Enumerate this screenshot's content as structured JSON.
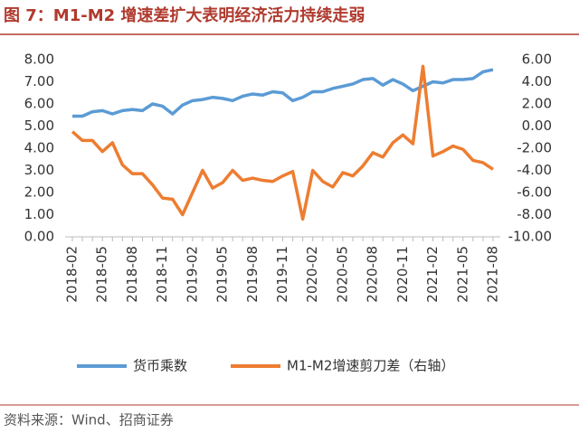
{
  "chart_data": {
    "type": "line",
    "title": "图 7：M1-M2 增速差扩大表明经济活力持续走弱",
    "source": "资料来源：Wind、招商证券",
    "categories": [
      "2018-02",
      null,
      null,
      "2018-05",
      null,
      null,
      "2018-08",
      null,
      null,
      "2018-11",
      null,
      null,
      "2019-02",
      null,
      null,
      "2019-05",
      null,
      null,
      "2019-08",
      null,
      null,
      "2019-11",
      null,
      null,
      "2020-02",
      null,
      null,
      "2020-05",
      null,
      null,
      "2020-08",
      null,
      null,
      "2020-11",
      null,
      null,
      "2021-02",
      null,
      null,
      "2021-05",
      null,
      null,
      "2021-08"
    ],
    "series": [
      {
        "name": "货币乘数",
        "color": "#5b9bd5",
        "values": [
          5.45,
          5.45,
          5.65,
          5.7,
          5.55,
          5.7,
          5.75,
          5.7,
          6.0,
          5.9,
          5.55,
          5.95,
          6.15,
          6.2,
          6.3,
          6.25,
          6.15,
          6.35,
          6.45,
          6.4,
          6.55,
          6.5,
          6.15,
          6.3,
          6.55,
          6.55,
          6.7,
          6.8,
          6.9,
          7.1,
          7.15,
          6.85,
          7.1,
          6.9,
          6.6,
          6.8,
          7.0,
          6.95,
          7.1,
          7.1,
          7.15,
          7.45,
          7.55
        ]
      },
      {
        "name": "M1-M2增速剪刀差（右轴）",
        "color": "#ed7d31",
        "axis": "y2",
        "values": [
          -0.5,
          -1.3,
          -1.3,
          -2.3,
          -1.5,
          -3.5,
          -4.3,
          -4.3,
          -5.3,
          -6.5,
          -6.6,
          -8.0,
          -6.0,
          -4.0,
          -5.6,
          -5.1,
          -4.0,
          -4.9,
          -4.7,
          -4.9,
          -5.0,
          -4.5,
          -4.1,
          -8.4,
          -4.0,
          -5.0,
          -5.5,
          -4.2,
          -4.5,
          -3.6,
          -2.4,
          -2.8,
          -1.5,
          -0.8,
          -1.6,
          5.4,
          -2.7,
          -2.3,
          -1.8,
          -2.1,
          -3.1,
          -3.3,
          -3.9
        ]
      }
    ],
    "ylim": [
      0,
      8
    ],
    "yticks": [
      {
        "value": 0,
        "label": "0.00"
      },
      {
        "value": 1,
        "label": "1.00"
      },
      {
        "value": 2,
        "label": "2.00"
      },
      {
        "value": 3,
        "label": "3.00"
      },
      {
        "value": 4,
        "label": "4.00"
      },
      {
        "value": 5,
        "label": "5.00"
      },
      {
        "value": 6,
        "label": "6.00"
      },
      {
        "value": 7,
        "label": "7.00"
      },
      {
        "value": 8,
        "label": "8.00"
      }
    ],
    "y2lim": [
      -10,
      6
    ],
    "y2ticks": [
      {
        "value": -10,
        "label": "-10.00"
      },
      {
        "value": -8,
        "label": "-8.00"
      },
      {
        "value": -6,
        "label": "-6.00"
      },
      {
        "value": -4,
        "label": "-4.00"
      },
      {
        "value": -2,
        "label": "-2.00"
      },
      {
        "value": 0,
        "label": "0.00"
      },
      {
        "value": 2,
        "label": "2.00"
      },
      {
        "value": 4,
        "label": "4.00"
      },
      {
        "value": 6,
        "label": "6.00"
      }
    ],
    "grid": false
  }
}
